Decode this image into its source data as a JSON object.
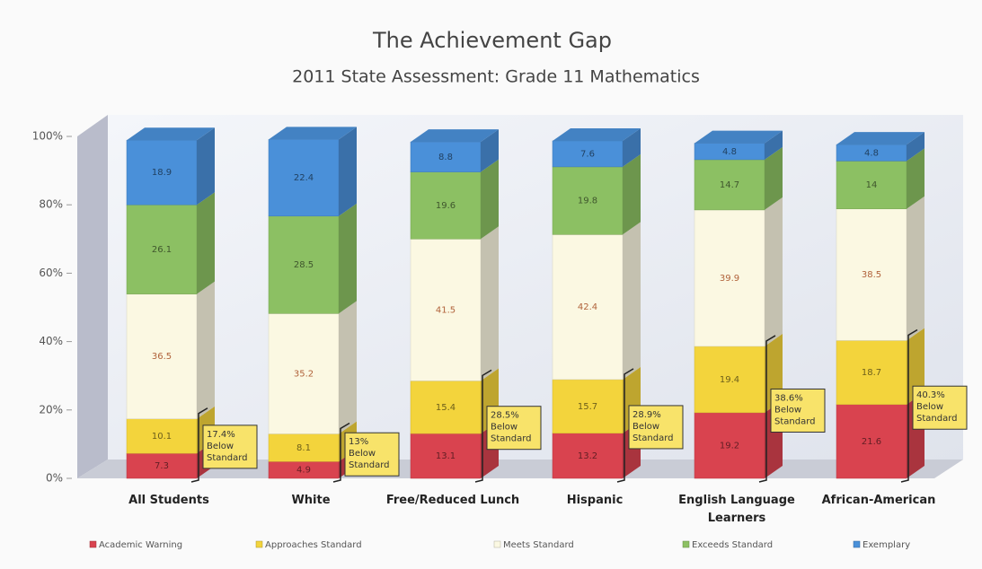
{
  "chart_data": {
    "type": "bar3d_stacked",
    "title": "The Achievement Gap",
    "subtitle": "2011 State Assessment: Grade 11 Mathematics",
    "categories": [
      "All Students",
      "White",
      "Free/Reduced Lunch",
      "Hispanic",
      "English Language Learners",
      "African-American"
    ],
    "series": [
      {
        "name": "Academic Warning",
        "color": "#d9434f",
        "values": [
          7.3,
          4.9,
          13.1,
          13.2,
          19.2,
          21.6
        ]
      },
      {
        "name": "Approaches Standard",
        "color": "#f3d43c",
        "values": [
          10.1,
          8.1,
          15.4,
          15.7,
          19.4,
          18.7
        ]
      },
      {
        "name": "Meets Standard",
        "color": "#fbf8e2",
        "values": [
          36.5,
          35.2,
          41.5,
          42.4,
          39.9,
          38.5
        ]
      },
      {
        "name": "Exceeds Standard",
        "color": "#8cc063",
        "values": [
          26.1,
          28.5,
          19.6,
          19.8,
          14.7,
          14
        ]
      },
      {
        "name": "Exemplary",
        "color": "#4a90d9",
        "values": [
          18.9,
          22.4,
          8.8,
          7.6,
          4.8,
          4.8
        ]
      }
    ],
    "annotations": [
      "17.4% Below Standard",
      "13% Below Standard",
      "28.5% Below Standard",
      "28.9% Below Standard",
      "38.6% Below Standard",
      "40.3% Below Standard"
    ],
    "ylim": [
      0,
      100
    ],
    "yticks": [
      {
        "value": 0,
        "label": "0%"
      },
      {
        "value": 20,
        "label": "20%"
      },
      {
        "value": 40,
        "label": "40%"
      },
      {
        "value": 60,
        "label": "60%"
      },
      {
        "value": 80,
        "label": "80%"
      },
      {
        "value": 100,
        "label": "100%"
      }
    ],
    "legend": "bottom"
  }
}
